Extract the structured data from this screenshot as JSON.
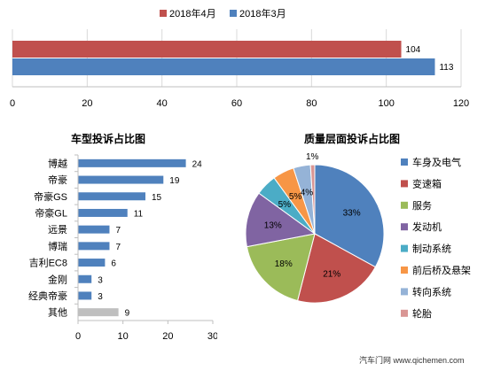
{
  "chart_data": [
    {
      "type": "bar",
      "orientation": "horizontal",
      "categories": [
        ""
      ],
      "series": [
        {
          "name": "2018年4月",
          "values": [
            104
          ],
          "color": "#C0504D"
        },
        {
          "name": "2018年3月",
          "values": [
            113
          ],
          "color": "#4F81BD"
        }
      ],
      "xlim": [
        0,
        120
      ],
      "xticks": [
        "0",
        "20",
        "40",
        "60",
        "80",
        "100",
        "120"
      ],
      "grid": true,
      "legend": "top"
    },
    {
      "type": "bar",
      "orientation": "horizontal",
      "title": "车型投诉占比图",
      "categories": [
        "博越",
        "帝豪",
        "帝豪GS",
        "帝豪GL",
        "远景",
        "博瑞",
        "吉利EC8",
        "金刚",
        "经典帝豪",
        "其他"
      ],
      "values": [
        24,
        19,
        15,
        11,
        7,
        7,
        6,
        3,
        3,
        9
      ],
      "bar_colors": [
        "#4F81BD",
        "#4F81BD",
        "#4F81BD",
        "#4F81BD",
        "#4F81BD",
        "#4F81BD",
        "#4F81BD",
        "#4F81BD",
        "#4F81BD",
        "#BFBFBF"
      ],
      "xlim": [
        0,
        30
      ],
      "xticks": [
        "0",
        "10",
        "20",
        "30"
      ],
      "data_labels": true
    },
    {
      "type": "pie",
      "title": "质量层面投诉占比图",
      "labels": [
        "车身及电气",
        "变速箱",
        "服务",
        "发动机",
        "制动系统",
        "前后桥及悬架",
        "转向系统",
        "轮胎"
      ],
      "values": [
        33,
        21,
        18,
        13,
        5,
        5,
        4,
        1
      ],
      "pct_labels": [
        "33%",
        "21%",
        "18%",
        "13%",
        "5%",
        "5%",
        "4%",
        "1%"
      ],
      "colors": [
        "#4F81BD",
        "#C0504D",
        "#9BBB59",
        "#8064A2",
        "#4BACC6",
        "#F79646",
        "#95B3D7",
        "#D99694"
      ],
      "legend": "right"
    }
  ],
  "watermark": {
    "text": "汽车门网 www.qichemen.com"
  }
}
